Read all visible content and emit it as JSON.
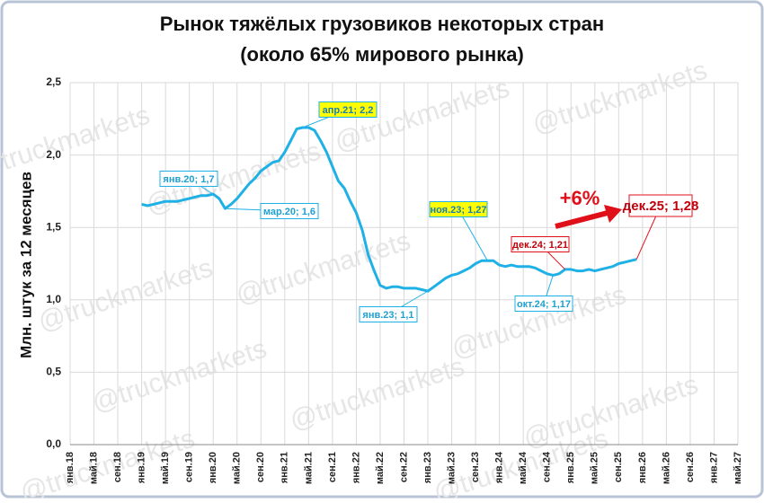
{
  "chart_data": {
    "type": "line",
    "title": "Рынок тяжёлых грузовиков некоторых стран",
    "subtitle": "(около 65% мирового рынка)",
    "y_label": "Млн. штук за 12 месяцев",
    "watermark": "@truckmarkets",
    "categories": [
      "янв.18",
      null,
      null,
      null,
      "май.18",
      null,
      null,
      null,
      "сен.18",
      null,
      null,
      null,
      "янв.19",
      null,
      null,
      null,
      "май.19",
      null,
      null,
      null,
      "сен.19",
      null,
      null,
      null,
      "янв.20",
      null,
      null,
      null,
      "май.20",
      null,
      null,
      null,
      "сен.20",
      null,
      null,
      null,
      "янв.21",
      null,
      null,
      null,
      "май.21",
      null,
      null,
      null,
      "сен.21",
      null,
      null,
      null,
      "янв.22",
      null,
      null,
      null,
      "май.22",
      null,
      null,
      null,
      "сен.22",
      null,
      null,
      null,
      "янв.23",
      null,
      null,
      null,
      "май.23",
      null,
      null,
      null,
      "сен.23",
      null,
      null,
      null,
      "янв.24",
      null,
      null,
      null,
      "май.24",
      null,
      null,
      null,
      "сен.24",
      null,
      null,
      null,
      "янв.25",
      null,
      null,
      null,
      "май.25",
      null,
      null,
      null,
      "сен.25",
      null,
      null,
      null,
      "янв.26",
      null,
      null,
      null,
      "май.26",
      null,
      null,
      null,
      "сен.26",
      null,
      null,
      null,
      "янв.27",
      null,
      null,
      null,
      "май.27"
    ],
    "series": [
      {
        "color": "#1fb0e6",
        "values": [
          null,
          null,
          null,
          null,
          null,
          null,
          null,
          null,
          null,
          null,
          null,
          null,
          1.66,
          1.65,
          1.66,
          1.67,
          1.68,
          1.68,
          1.68,
          1.69,
          1.7,
          1.71,
          1.72,
          1.72,
          1.73,
          1.7,
          1.63,
          1.66,
          1.7,
          1.75,
          1.8,
          1.84,
          1.89,
          1.92,
          1.95,
          1.96,
          2.02,
          2.1,
          2.18,
          2.19,
          2.19,
          2.17,
          2.1,
          2.02,
          1.92,
          1.82,
          1.77,
          1.68,
          1.6,
          1.48,
          1.31,
          1.2,
          1.1,
          1.08,
          1.09,
          1.09,
          1.08,
          1.08,
          1.08,
          1.07,
          1.06,
          1.09,
          1.12,
          1.15,
          1.17,
          1.18,
          1.2,
          1.22,
          1.25,
          1.27,
          1.27,
          1.27,
          1.24,
          1.23,
          1.24,
          1.23,
          1.23,
          1.23,
          1.22,
          1.2,
          1.18,
          1.17,
          1.18,
          1.21,
          1.21,
          1.2,
          1.2,
          1.21,
          1.2,
          1.21,
          1.22,
          1.23,
          1.25,
          1.26,
          1.27,
          1.28,
          null,
          null,
          null,
          null,
          null,
          null,
          null,
          null,
          null,
          null,
          null,
          null,
          null,
          null,
          null,
          null,
          null
        ]
      }
    ],
    "ylim": [
      0,
      2.5
    ],
    "yticks": [
      {
        "value": 0,
        "label": "0,0"
      },
      {
        "value": 0.5,
        "label": "0,5"
      },
      {
        "value": 1,
        "label": "1,0"
      },
      {
        "value": 1.5,
        "label": "1,5"
      },
      {
        "value": 2,
        "label": "2,0"
      },
      {
        "value": 2.5,
        "label": "2,5"
      }
    ],
    "grid": true,
    "annotations": [
      {
        "text": "янв.20; 1,7"
      },
      {
        "text": "мар.20; 1,6"
      },
      {
        "text": "апр.21; 2,2"
      },
      {
        "text": "янв.23; 1,1"
      },
      {
        "text": "ноя.23; 1,27"
      },
      {
        "text": "окт.24; 1,17"
      },
      {
        "text": "дек.24; 1,21"
      },
      {
        "text": "дек.25; 1,28"
      },
      {
        "text": "+6%"
      }
    ]
  }
}
